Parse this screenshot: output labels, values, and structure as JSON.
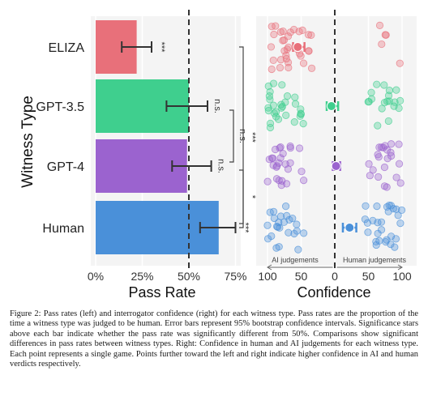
{
  "chart_data": [
    {
      "type": "bar",
      "orientation": "horizontal",
      "ylabel": "Witness Type",
      "xlabel": "Pass Rate",
      "categories": [
        "ELIZA",
        "GPT-3.5",
        "GPT-4",
        "Human"
      ],
      "values": [
        0.22,
        0.5,
        0.49,
        0.66
      ],
      "ci_low": [
        0.14,
        0.38,
        0.41,
        0.56
      ],
      "ci_high": [
        0.3,
        0.6,
        0.62,
        0.75
      ],
      "colors": [
        "#e8707a",
        "#3fcf8e",
        "#9b63cf",
        "#4a90d9"
      ],
      "xlim": [
        0,
        0.8
      ],
      "xtick_values": [
        0,
        0.25,
        0.5,
        0.75
      ],
      "xtick_labels": [
        "0%",
        "25%",
        "50%",
        "75%"
      ],
      "reference_line": 0.5,
      "significance": [
        "***",
        "n.s.",
        "n.s.",
        "***"
      ],
      "comparisons": [
        {
          "between": [
            "ELIZA",
            "Human"
          ],
          "label": "***"
        },
        {
          "between": [
            "GPT-3.5",
            "GPT-4"
          ],
          "label": "n.s."
        },
        {
          "between": [
            "GPT-4",
            "Human"
          ],
          "label": "*"
        }
      ]
    },
    {
      "type": "scatter",
      "xlabel": "Confidence",
      "categories": [
        "ELIZA",
        "GPT-3.5",
        "GPT-4",
        "Human"
      ],
      "xlim": [
        -100,
        100
      ],
      "xtick_values": [
        -100,
        -50,
        0,
        50,
        100
      ],
      "xtick_labels": [
        "100",
        "50",
        "0",
        "50",
        "100"
      ],
      "means": [
        -55,
        -5,
        2,
        22
      ],
      "ci_low": [
        -62,
        -12,
        -3,
        12
      ],
      "ci_high": [
        -45,
        5,
        8,
        32
      ],
      "colors": [
        "#e8707a",
        "#3fcf8e",
        "#9b63cf",
        "#4a90d9"
      ],
      "left_annotation": "AI judgements",
      "right_annotation": "Human judgements"
    }
  ],
  "caption": "Figure 2: Pass rates (left) and interrogator confidence (right) for each witness type. Pass rates are the proportion of the time a witness type was judged to be human. Error bars represent 95% bootstrap confidence intervals. Significance stars above each bar indicate whether the pass rate was significantly different from 50%. Comparisons show significant differences in pass rates between witness types. Right: Confidence in human and AI judgements for each witness type. Each point represents a single game. Points further toward the left and right indicate higher confidence in AI and human verdicts respectively."
}
